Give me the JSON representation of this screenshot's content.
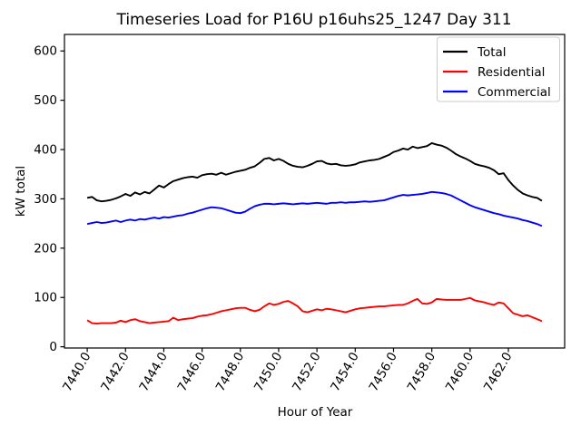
{
  "chart_data": {
    "type": "line",
    "title": "Timeseries Load for P16U p16uhs25_1247  Day 311",
    "xlabel": "Hour of Year",
    "ylabel": "kW total",
    "x_start": 7440.0,
    "x_step": 0.25,
    "xlim": [
      7438.81,
      7464.94
    ],
    "ylim": [
      -2.5,
      633.5
    ],
    "xticks": [
      7440,
      7442,
      7444,
      7446,
      7448,
      7450,
      7452,
      7454,
      7456,
      7458,
      7460,
      7462
    ],
    "xtick_labels": [
      "7440.0",
      "7442.0",
      "7444.0",
      "7446.0",
      "7448.0",
      "7450.0",
      "7452.0",
      "7454.0",
      "7456.0",
      "7458.0",
      "7460.0",
      "7462.0"
    ],
    "yticks": [
      0,
      100,
      200,
      300,
      400,
      500,
      600
    ],
    "ytick_labels": [
      "0",
      "100",
      "200",
      "300",
      "400",
      "500",
      "600"
    ],
    "grid": false,
    "legend_position": "upper right",
    "background_color": "#ffffff",
    "series": [
      {
        "name": "Total",
        "color": "#000000",
        "values": [
          302,
          304,
          297,
          295,
          296,
          298,
          301,
          305,
          310,
          306,
          313,
          309,
          314,
          311,
          319,
          327,
          323,
          330,
          336,
          339,
          342,
          344,
          345,
          343,
          348,
          350,
          351,
          349,
          353,
          349,
          352,
          355,
          357,
          359,
          363,
          366,
          373,
          381,
          383,
          378,
          381,
          377,
          371,
          367,
          365,
          364,
          367,
          371,
          376,
          377,
          372,
          370,
          371,
          368,
          367,
          368,
          370,
          374,
          376,
          378,
          379,
          381,
          385,
          389,
          395,
          398,
          402,
          400,
          406,
          403,
          405,
          407,
          413,
          410,
          408,
          404,
          398,
          391,
          386,
          382,
          377,
          371,
          368,
          366,
          363,
          358,
          350,
          352,
          338,
          327,
          318,
          311,
          307,
          304,
          302,
          296
        ]
      },
      {
        "name": "Residential",
        "color": "#ff0000",
        "values": [
          54,
          48,
          47,
          48,
          48,
          48,
          49,
          53,
          50,
          54,
          56,
          52,
          50,
          48,
          49,
          50,
          51,
          52,
          59,
          54,
          56,
          57,
          58,
          61,
          63,
          64,
          66,
          69,
          72,
          74,
          76,
          78,
          79,
          79,
          75,
          72,
          75,
          82,
          88,
          85,
          87,
          91,
          93,
          88,
          82,
          72,
          70,
          73,
          76,
          74,
          77,
          76,
          74,
          72,
          70,
          73,
          76,
          78,
          79,
          80,
          81,
          82,
          82,
          83,
          84,
          85,
          85,
          88,
          93,
          97,
          88,
          87,
          90,
          97,
          96,
          95,
          95,
          95,
          95,
          97,
          99,
          94,
          92,
          90,
          87,
          85,
          90,
          88,
          78,
          68,
          65,
          62,
          64,
          60,
          56,
          52
        ]
      },
      {
        "name": "Commercial",
        "color": "#0000ff",
        "values": [
          249,
          251,
          253,
          251,
          252,
          254,
          256,
          253,
          256,
          258,
          256,
          259,
          258,
          260,
          262,
          260,
          263,
          262,
          264,
          266,
          267,
          270,
          272,
          275,
          278,
          281,
          283,
          282,
          281,
          278,
          275,
          272,
          271,
          274,
          280,
          285,
          288,
          290,
          290,
          289,
          290,
          291,
          290,
          289,
          290,
          291,
          290,
          291,
          292,
          291,
          290,
          292,
          292,
          293,
          292,
          293,
          293,
          294,
          295,
          294,
          295,
          296,
          297,
          300,
          303,
          306,
          308,
          307,
          308,
          309,
          310,
          312,
          314,
          313,
          312,
          310,
          307,
          302,
          297,
          292,
          287,
          283,
          280,
          277,
          274,
          271,
          269,
          266,
          264,
          262,
          260,
          257,
          255,
          252,
          249,
          245
        ]
      }
    ]
  }
}
